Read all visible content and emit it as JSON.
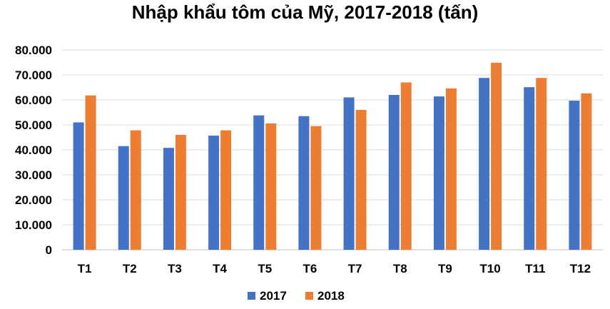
{
  "chart_data": {
    "type": "bar",
    "title": "Nhập khẩu tôm của Mỹ, 2017-2018 (tấn)",
    "categories": [
      "T1",
      "T2",
      "T3",
      "T4",
      "T5",
      "T6",
      "T7",
      "T8",
      "T9",
      "T10",
      "T11",
      "T12"
    ],
    "series": [
      {
        "name": "2017",
        "color": "#4472C4",
        "values": [
          51000,
          41500,
          40800,
          45700,
          53800,
          53500,
          61000,
          62000,
          61400,
          68800,
          65100,
          59700
        ]
      },
      {
        "name": "2018",
        "color": "#ED7D31",
        "values": [
          61800,
          47800,
          46000,
          47800,
          50600,
          49500,
          56000,
          67000,
          64600,
          74900,
          68800,
          62600
        ]
      }
    ],
    "ylim": [
      0,
      80000
    ],
    "yticks": [
      "0",
      "10.000",
      "20.000",
      "30.000",
      "40.000",
      "50.000",
      "60.000",
      "70.000",
      "80.000"
    ],
    "xlabel": "",
    "ylabel": "",
    "grid": true,
    "legend_position": "bottom"
  }
}
